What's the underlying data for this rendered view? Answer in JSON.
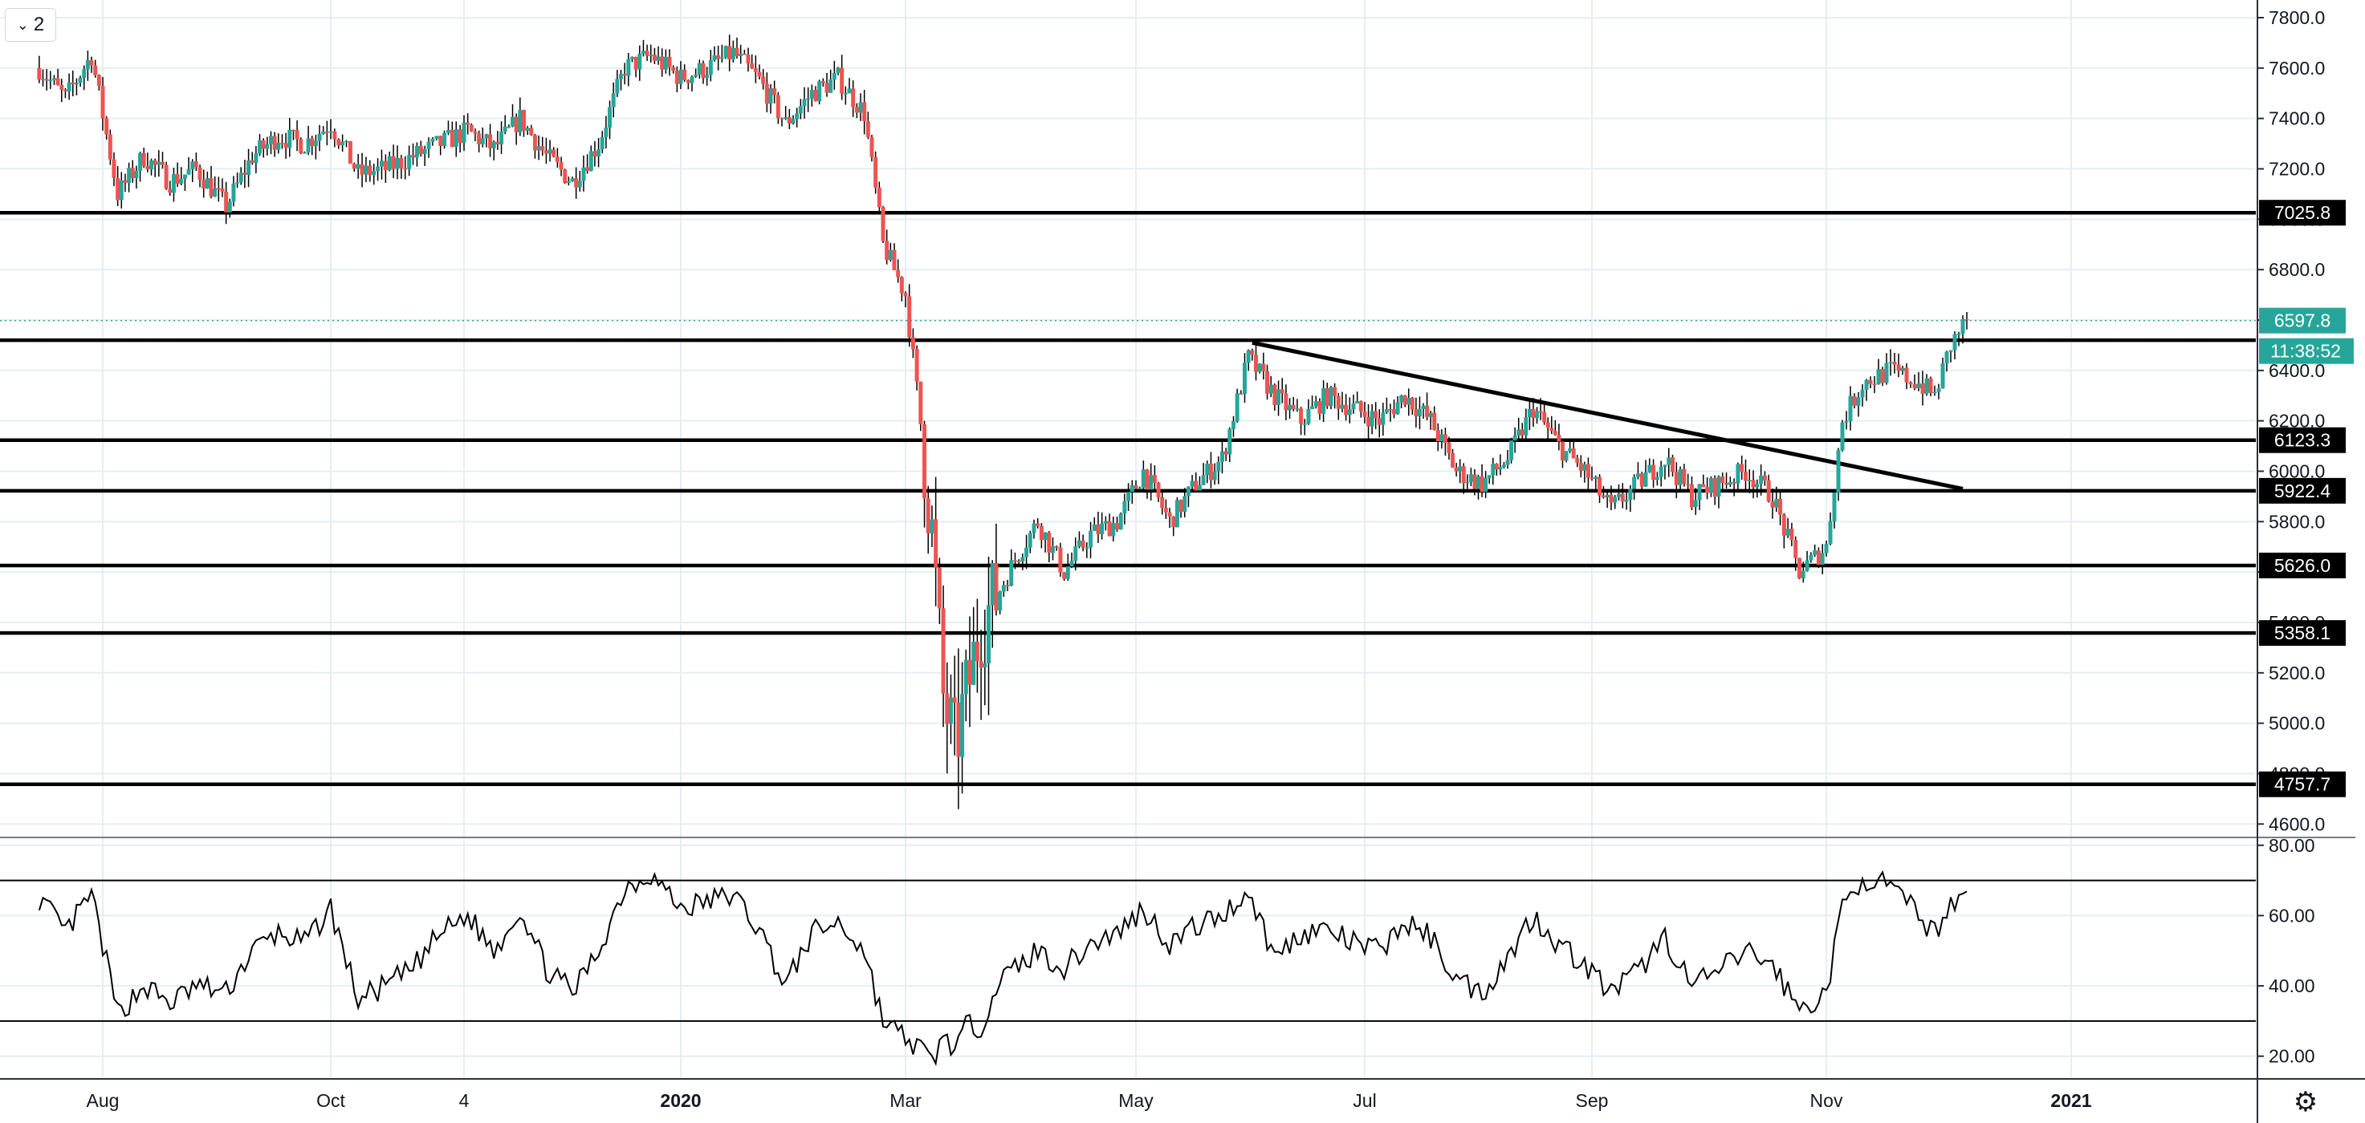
{
  "toolbar": {
    "collapse_count": "2",
    "collapse_icon": "chevron-down-icon",
    "settings_icon": "gear-icon"
  },
  "colors": {
    "up": "#26a69a",
    "down": "#ef5350",
    "grid": "#e6eef3",
    "level": "#000000",
    "last_price": "#26a69a"
  },
  "chart_data": [
    {
      "type": "candlestick",
      "title": "",
      "x_labels": [
        "Aug",
        "Oct",
        "4",
        "2020",
        "Mar",
        "May",
        "Jul",
        "Sep",
        "Nov",
        "2021"
      ],
      "y_ticks": [
        4600,
        4800,
        5000,
        5200,
        5400,
        5600,
        5800,
        6000,
        6200,
        6400,
        6600,
        6800,
        7000,
        7200,
        7400,
        7600,
        7800
      ],
      "ylim": [
        4550,
        7870
      ],
      "horizontal_levels": [
        {
          "value": 7025.8,
          "label": "7025.8"
        },
        {
          "value": 6520,
          "label": ""
        },
        {
          "value": 6123.3,
          "label": "6123.3"
        },
        {
          "value": 5922.4,
          "label": "5922.4"
        },
        {
          "value": 5626.0,
          "label": "5626.0"
        },
        {
          "value": 5358.1,
          "label": "5358.1"
        },
        {
          "value": 4757.7,
          "label": "4757.7"
        }
      ],
      "last_price": {
        "value": 6597.8,
        "label": "6597.8",
        "countdown": "11:38:52"
      },
      "trendline": {
        "from": {
          "date": "2020-06-01",
          "value": 6510
        },
        "to": {
          "date": "2020-12-05",
          "value": 5930
        }
      },
      "price_path": [
        [
          "2019-07-15",
          7600
        ],
        [
          "2019-07-22",
          7480
        ],
        [
          "2019-07-29",
          7650
        ],
        [
          "2019-08-05",
          7100
        ],
        [
          "2019-08-12",
          7250
        ],
        [
          "2019-08-19",
          7150
        ],
        [
          "2019-08-26",
          7200
        ],
        [
          "2019-09-03",
          7050
        ],
        [
          "2019-09-10",
          7250
        ],
        [
          "2019-09-17",
          7330
        ],
        [
          "2019-09-24",
          7300
        ],
        [
          "2019-10-01",
          7380
        ],
        [
          "2019-10-08",
          7180
        ],
        [
          "2019-10-15",
          7200
        ],
        [
          "2019-10-22",
          7250
        ],
        [
          "2019-10-29",
          7300
        ],
        [
          "2019-11-05",
          7350
        ],
        [
          "2019-11-12",
          7280
        ],
        [
          "2019-11-19",
          7400
        ],
        [
          "2019-11-26",
          7250
        ],
        [
          "2019-12-03",
          7150
        ],
        [
          "2019-12-10",
          7300
        ],
        [
          "2019-12-17",
          7600
        ],
        [
          "2019-12-24",
          7650
        ],
        [
          "2020-01-01",
          7560
        ],
        [
          "2020-01-08",
          7600
        ],
        [
          "2020-01-15",
          7660
        ],
        [
          "2020-01-22",
          7550
        ],
        [
          "2020-01-29",
          7380
        ],
        [
          "2020-02-05",
          7500
        ],
        [
          "2020-02-12",
          7560
        ],
        [
          "2020-02-19",
          7420
        ],
        [
          "2020-02-24",
          6900
        ],
        [
          "2020-03-01",
          6700
        ],
        [
          "2020-03-05",
          6200
        ],
        [
          "2020-03-08",
          5750
        ],
        [
          "2020-03-11",
          5100
        ],
        [
          "2020-03-14",
          4900
        ],
        [
          "2020-03-17",
          5100
        ],
        [
          "2020-03-21",
          5400
        ],
        [
          "2020-03-25",
          5500
        ],
        [
          "2020-03-30",
          5650
        ],
        [
          "2020-04-05",
          5800
        ],
        [
          "2020-04-12",
          5600
        ],
        [
          "2020-04-19",
          5750
        ],
        [
          "2020-04-26",
          5800
        ],
        [
          "2020-05-03",
          6000
        ],
        [
          "2020-05-10",
          5800
        ],
        [
          "2020-05-17",
          5950
        ],
        [
          "2020-05-24",
          6050
        ],
        [
          "2020-05-31",
          6450
        ],
        [
          "2020-06-07",
          6300
        ],
        [
          "2020-06-14",
          6200
        ],
        [
          "2020-06-21",
          6300
        ],
        [
          "2020-06-28",
          6250
        ],
        [
          "2020-07-05",
          6200
        ],
        [
          "2020-07-12",
          6300
        ],
        [
          "2020-07-19",
          6200
        ],
        [
          "2020-07-26",
          6000
        ],
        [
          "2020-08-02",
          5950
        ],
        [
          "2020-08-09",
          6050
        ],
        [
          "2020-08-16",
          6250
        ],
        [
          "2020-08-23",
          6100
        ],
        [
          "2020-08-30",
          6000
        ],
        [
          "2020-09-06",
          5850
        ],
        [
          "2020-09-13",
          5950
        ],
        [
          "2020-09-20",
          6050
        ],
        [
          "2020-09-27",
          5900
        ],
        [
          "2020-10-04",
          5950
        ],
        [
          "2020-10-11",
          6000
        ],
        [
          "2020-10-18",
          5900
        ],
        [
          "2020-10-25",
          5600
        ],
        [
          "2020-11-01",
          5700
        ],
        [
          "2020-11-05",
          6200
        ],
        [
          "2020-11-10",
          6350
        ],
        [
          "2020-11-17",
          6400
        ],
        [
          "2020-11-24",
          6350
        ],
        [
          "2020-11-28",
          6300
        ],
        [
          "2020-12-02",
          6500
        ],
        [
          "2020-12-06",
          6600
        ]
      ]
    },
    {
      "type": "line",
      "title": "",
      "y_ticks": [
        20,
        40,
        60,
        80
      ],
      "y_tick_labels": [
        "20.00",
        "40.00",
        "60.00",
        "80.00"
      ],
      "ylim": [
        14,
        82
      ],
      "bands": [
        30,
        70
      ],
      "series": [
        {
          "values_path": [
            [
              "2019-07-15",
              65
            ],
            [
              "2019-07-22",
              55
            ],
            [
              "2019-07-29",
              66
            ],
            [
              "2019-08-05",
              32
            ],
            [
              "2019-08-12",
              40
            ],
            [
              "2019-08-19",
              35
            ],
            [
              "2019-08-26",
              40
            ],
            [
              "2019-09-03",
              38
            ],
            [
              "2019-09-10",
              50
            ],
            [
              "2019-09-17",
              55
            ],
            [
              "2019-09-24",
              52
            ],
            [
              "2019-10-01",
              62
            ],
            [
              "2019-10-08",
              36
            ],
            [
              "2019-10-15",
              40
            ],
            [
              "2019-10-22",
              45
            ],
            [
              "2019-10-29",
              55
            ],
            [
              "2019-11-05",
              60
            ],
            [
              "2019-11-12",
              50
            ],
            [
              "2019-11-19",
              62
            ],
            [
              "2019-11-26",
              45
            ],
            [
              "2019-12-03",
              38
            ],
            [
              "2019-12-10",
              50
            ],
            [
              "2019-12-17",
              68
            ],
            [
              "2019-12-24",
              72
            ],
            [
              "2020-01-01",
              62
            ],
            [
              "2020-01-08",
              64
            ],
            [
              "2020-01-15",
              66
            ],
            [
              "2020-01-22",
              56
            ],
            [
              "2020-01-29",
              40
            ],
            [
              "2020-02-05",
              55
            ],
            [
              "2020-02-12",
              58
            ],
            [
              "2020-02-19",
              50
            ],
            [
              "2020-02-24",
              30
            ],
            [
              "2020-03-01",
              25
            ],
            [
              "2020-03-05",
              22
            ],
            [
              "2020-03-08",
              18
            ],
            [
              "2020-03-11",
              26
            ],
            [
              "2020-03-14",
              22
            ],
            [
              "2020-03-17",
              28
            ],
            [
              "2020-03-21",
              29
            ],
            [
              "2020-03-25",
              40
            ],
            [
              "2020-03-30",
              45
            ],
            [
              "2020-04-05",
              50
            ],
            [
              "2020-04-12",
              45
            ],
            [
              "2020-04-19",
              52
            ],
            [
              "2020-04-26",
              55
            ],
            [
              "2020-05-03",
              62
            ],
            [
              "2020-05-10",
              52
            ],
            [
              "2020-05-17",
              57
            ],
            [
              "2020-05-24",
              60
            ],
            [
              "2020-05-31",
              67
            ],
            [
              "2020-06-07",
              48
            ],
            [
              "2020-06-14",
              55
            ],
            [
              "2020-06-21",
              56
            ],
            [
              "2020-06-28",
              52
            ],
            [
              "2020-07-05",
              50
            ],
            [
              "2020-07-12",
              58
            ],
            [
              "2020-07-19",
              54
            ],
            [
              "2020-07-26",
              42
            ],
            [
              "2020-08-02",
              38
            ],
            [
              "2020-08-09",
              48
            ],
            [
              "2020-08-16",
              60
            ],
            [
              "2020-08-23",
              52
            ],
            [
              "2020-08-30",
              46
            ],
            [
              "2020-09-06",
              38
            ],
            [
              "2020-09-13",
              44
            ],
            [
              "2020-09-20",
              54
            ],
            [
              "2020-09-27",
              40
            ],
            [
              "2020-10-04",
              44
            ],
            [
              "2020-10-11",
              50
            ],
            [
              "2020-10-18",
              46
            ],
            [
              "2020-10-25",
              33
            ],
            [
              "2020-11-01",
              38
            ],
            [
              "2020-11-05",
              62
            ],
            [
              "2020-11-10",
              71
            ],
            [
              "2020-11-17",
              68
            ],
            [
              "2020-11-24",
              60
            ],
            [
              "2020-11-28",
              55
            ],
            [
              "2020-12-02",
              64
            ],
            [
              "2020-12-06",
              66
            ]
          ]
        }
      ]
    }
  ]
}
